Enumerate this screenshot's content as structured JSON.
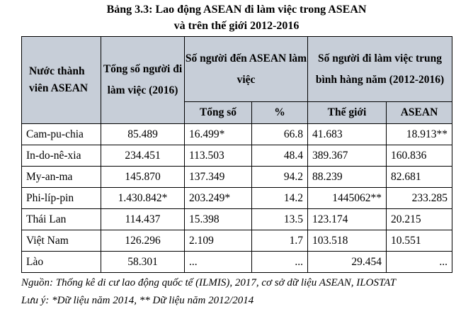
{
  "title": {
    "line1": "Bảng 3.3: Lao động ASEAN đi làm việc trong ASEAN",
    "line2": "và trên thế giới 2012-2016"
  },
  "headers": {
    "country": "Nước thành viên ASEAN",
    "total_workers": "Tổng số người đi làm việc (2016)",
    "to_asean": "Số người đến ASEAN làm việc",
    "to_asean_total": "Tổng số",
    "to_asean_pct": "%",
    "annual_avg": "Số người đi làm việc trung bình hàng năm (2012-2016)",
    "annual_world": "Thế giới",
    "annual_asean": "ASEAN"
  },
  "rows": [
    {
      "country": "Cam-pu-chia",
      "total": "85.489",
      "to_asean": "16.499*",
      "pct": "66.8",
      "world": "41.683",
      "asean": "18.913**"
    },
    {
      "country": "In-do-nê-xia",
      "total": "234.451",
      "to_asean": "113.503",
      "pct": "48.4",
      "world": "389.367",
      "asean": "160.836"
    },
    {
      "country": "My-an-ma",
      "total": "145.870",
      "to_asean": "137.349",
      "pct": "94.2",
      "world": "88.239",
      "asean": "82.681"
    },
    {
      "country": "Phi-líp-pin",
      "total": "1.430.842*",
      "to_asean": "203.249*",
      "pct": "14.2",
      "world": "1445062**",
      "asean": "233.285"
    },
    {
      "country": "Thái Lan",
      "total": "114.437",
      "to_asean": "15.398",
      "pct": "13.5",
      "world": "123.174",
      "asean": "20.215"
    },
    {
      "country": "Việt Nam",
      "total": "126.296",
      "to_asean": "2.109",
      "pct": "1.7",
      "world": "103.518",
      "asean": "10.551"
    },
    {
      "country": "Lào",
      "total": "58.301",
      "to_asean": "...",
      "pct": "...",
      "world": "29.454",
      "asean": "..."
    }
  ],
  "notes": {
    "source": "Nguồn: Thống kê di cư lao động quốc tế (ILMIS), 2017, cơ sở dữ liệu ASEAN, ILOSTAT",
    "legend": "Lưu ý: *Dữ liệu năm 2014, ** Dữ liệu năm 2012/2014"
  },
  "colors": {
    "header_bg": "#c7ced8"
  }
}
